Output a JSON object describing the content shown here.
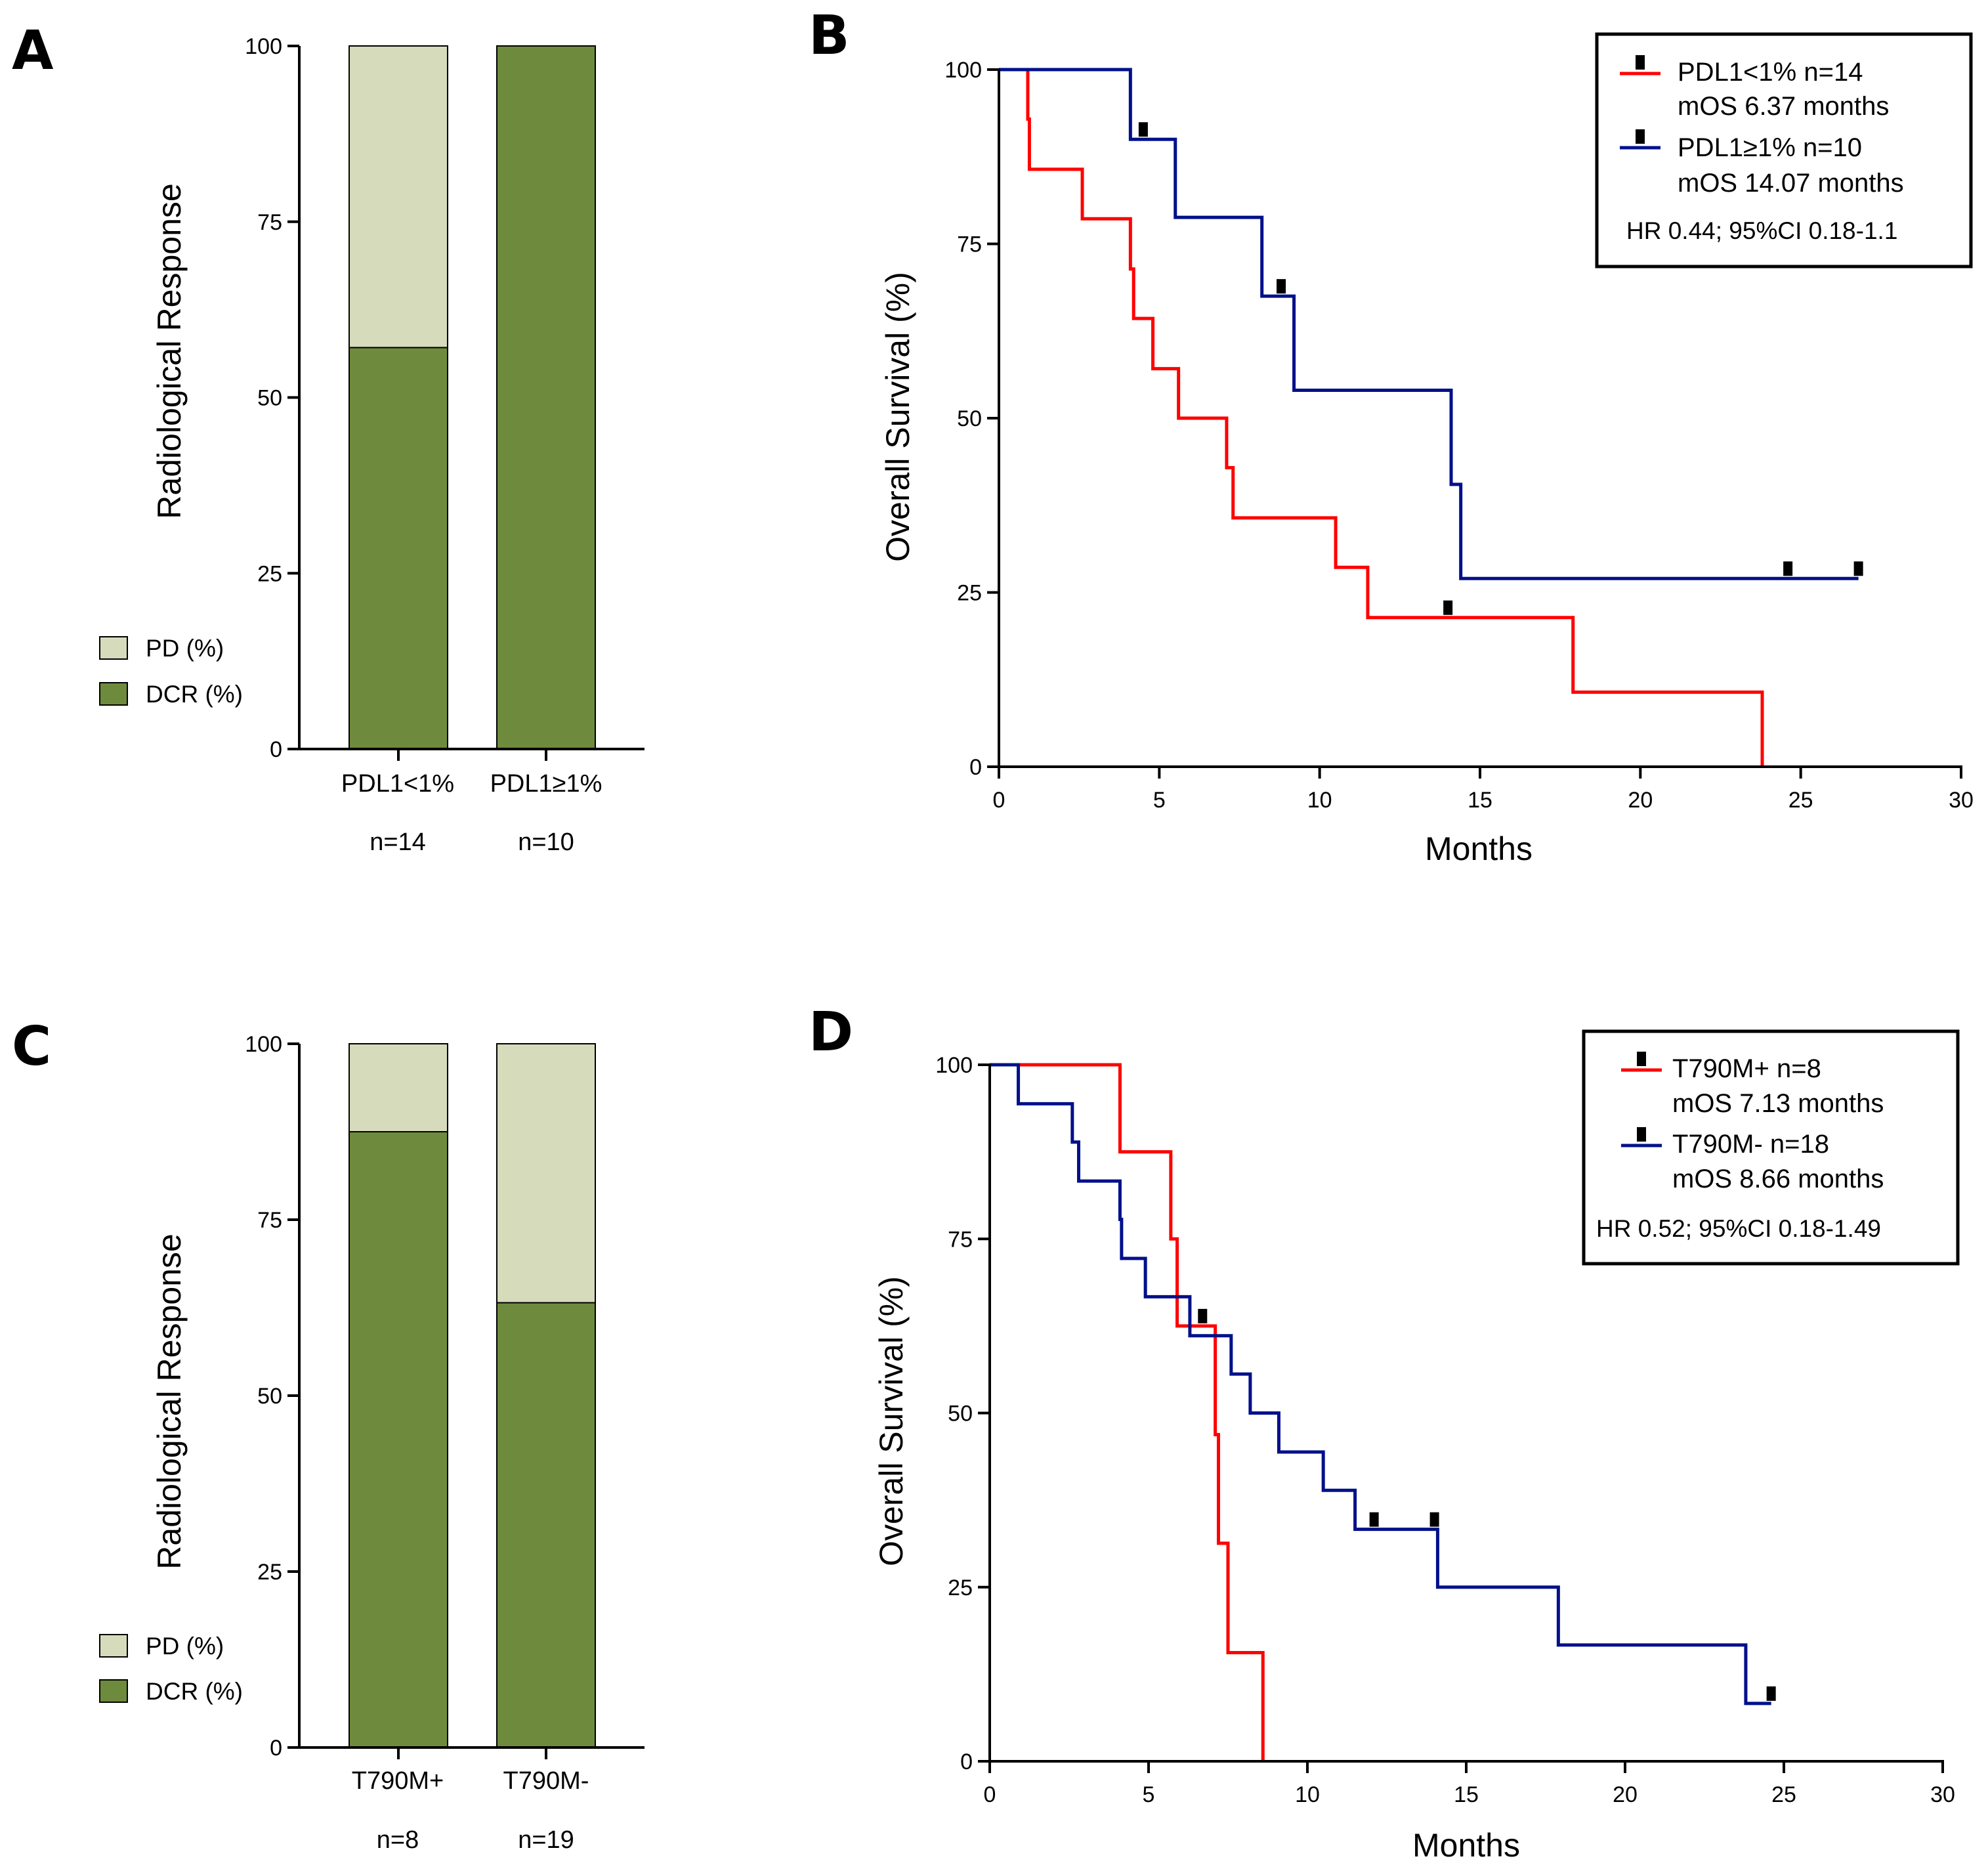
{
  "colors": {
    "dcr": "#6e8b3d",
    "pd": "#d6dbbb",
    "red": "#ff0000",
    "blue": "#00108a",
    "axis": "#000000"
  },
  "chart_data": [
    {
      "panel": "A",
      "type": "bar",
      "stacked": true,
      "ylabel": "Radiological Response",
      "ylim": [
        0,
        100
      ],
      "yticks": [
        "0",
        "25",
        "50",
        "75",
        "100"
      ],
      "categories": [
        "PDL1<1%",
        "PDL1≥1%"
      ],
      "category_n": [
        "n=14",
        "n=10"
      ],
      "series": [
        {
          "name": "DCR (%)",
          "values": [
            57.1,
            100
          ]
        },
        {
          "name": "PD (%)",
          "values": [
            42.9,
            0
          ]
        }
      ],
      "legend": [
        "PD (%)",
        "DCR (%)"
      ],
      "legend_position": "bottom-left"
    },
    {
      "panel": "B",
      "type": "line",
      "step": true,
      "xlabel": "Months",
      "ylabel": "Overall Survival (%)",
      "xlim": [
        0,
        30
      ],
      "ylim": [
        0,
        100
      ],
      "xticks": [
        "0",
        "5",
        "10",
        "15",
        "20",
        "25",
        "30"
      ],
      "yticks": [
        "0",
        "25",
        "50",
        "75",
        "100"
      ],
      "series": [
        {
          "name": "PDL1<1% n=14",
          "subtitle": "mOS 6.37 months",
          "color": "red",
          "steps": [
            [
              0,
              100
            ],
            [
              0.9,
              92.9
            ],
            [
              0.95,
              85.7
            ],
            [
              2.6,
              78.6
            ],
            [
              4.1,
              71.4
            ],
            [
              4.2,
              64.3
            ],
            [
              4.8,
              57.1
            ],
            [
              5.6,
              50.0
            ],
            [
              7.1,
              42.9
            ],
            [
              7.3,
              35.7
            ],
            [
              10.5,
              28.6
            ],
            [
              11.5,
              21.4
            ],
            [
              17.9,
              10.7
            ],
            [
              23.8,
              0
            ]
          ],
          "end": 23.8,
          "censors": [
            [
              14.0,
              21.4
            ]
          ]
        },
        {
          "name": "PDL1≥1% n=10",
          "subtitle": "mOS 14.07 months",
          "color": "blue",
          "steps": [
            [
              0,
              100
            ],
            [
              4.1,
              90.0
            ],
            [
              5.5,
              78.8
            ],
            [
              8.2,
              67.5
            ],
            [
              9.2,
              54.0
            ],
            [
              14.1,
              40.5
            ],
            [
              14.4,
              27.0
            ]
          ],
          "end": 26.8,
          "censors": [
            [
              4.5,
              90.0
            ],
            [
              8.8,
              67.5
            ],
            [
              24.6,
              27.0
            ],
            [
              26.8,
              27.0
            ]
          ]
        }
      ],
      "stat": "HR 0.44; 95%CI 0.18-1.1",
      "legend_position": "top-right"
    },
    {
      "panel": "C",
      "type": "bar",
      "stacked": true,
      "ylabel": "Radiological Response",
      "ylim": [
        0,
        100
      ],
      "yticks": [
        "0",
        "25",
        "50",
        "75",
        "100"
      ],
      "categories": [
        "T790M+",
        "T790M-"
      ],
      "category_n": [
        "n=8",
        "n=19"
      ],
      "series": [
        {
          "name": "DCR (%)",
          "values": [
            87.5,
            63.2
          ]
        },
        {
          "name": "PD (%)",
          "values": [
            12.5,
            36.8
          ]
        }
      ],
      "legend": [
        "PD (%)",
        "DCR (%)"
      ],
      "legend_position": "bottom-left"
    },
    {
      "panel": "D",
      "type": "line",
      "step": true,
      "xlabel": "Months",
      "ylabel": "Overall Survival (%)",
      "xlim": [
        0,
        30
      ],
      "ylim": [
        0,
        100
      ],
      "xticks": [
        "0",
        "5",
        "10",
        "15",
        "20",
        "25",
        "30"
      ],
      "yticks": [
        "0",
        "25",
        "50",
        "75",
        "100"
      ],
      "series": [
        {
          "name": "T790M+ n=8",
          "subtitle": "mOS 7.13 months",
          "color": "red",
          "steps": [
            [
              0,
              100
            ],
            [
              4.1,
              87.5
            ],
            [
              5.7,
              75.0
            ],
            [
              5.9,
              62.5
            ],
            [
              7.1,
              46.9
            ],
            [
              7.2,
              31.3
            ],
            [
              7.5,
              15.6
            ],
            [
              8.6,
              0
            ]
          ],
          "end": 8.6,
          "censors": [
            [
              6.7,
              62.5
            ]
          ]
        },
        {
          "name": "T790M- n=18",
          "subtitle": "mOS 8.66 months",
          "color": "blue",
          "steps": [
            [
              0,
              100
            ],
            [
              0.9,
              94.4
            ],
            [
              2.6,
              88.9
            ],
            [
              2.8,
              83.3
            ],
            [
              4.1,
              77.8
            ],
            [
              4.15,
              72.2
            ],
            [
              4.9,
              66.7
            ],
            [
              6.3,
              61.1
            ],
            [
              7.6,
              55.6
            ],
            [
              8.2,
              50.0
            ],
            [
              9.1,
              44.4
            ],
            [
              10.5,
              38.9
            ],
            [
              11.5,
              33.3
            ],
            [
              14.1,
              25.0
            ],
            [
              17.9,
              16.7
            ],
            [
              23.8,
              8.3
            ]
          ],
          "end": 24.6,
          "censors": [
            [
              12.1,
              33.3
            ],
            [
              14.0,
              33.3
            ],
            [
              24.6,
              8.3
            ]
          ]
        }
      ],
      "stat": "HR 0.52; 95%CI 0.18-1.49",
      "legend_position": "top-right"
    }
  ]
}
